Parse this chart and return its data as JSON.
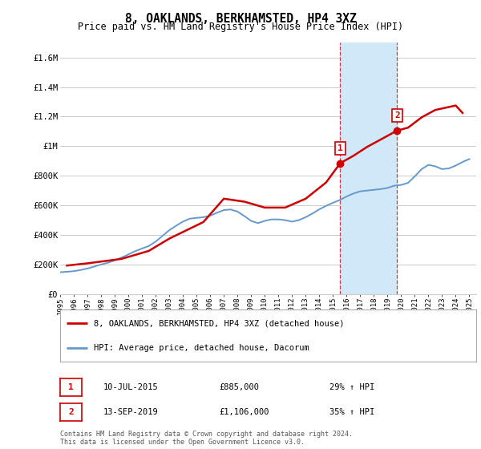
{
  "title": "8, OAKLANDS, BERKHAMSTED, HP4 3XZ",
  "subtitle": "Price paid vs. HM Land Registry's House Price Index (HPI)",
  "ylim": [
    0,
    1700000
  ],
  "xlim_start": 1995.0,
  "xlim_end": 2025.5,
  "yticks": [
    0,
    200000,
    400000,
    600000,
    800000,
    1000000,
    1200000,
    1400000,
    1600000
  ],
  "ytick_labels": [
    "£0",
    "£200K",
    "£400K",
    "£600K",
    "£800K",
    "£1M",
    "£1.2M",
    "£1.4M",
    "£1.6M"
  ],
  "sale1_x": 2015.53,
  "sale1_y": 885000,
  "sale2_x": 2019.71,
  "sale2_y": 1106000,
  "shade_x1": 2015.53,
  "shade_x2": 2019.71,
  "red_color": "#cc0000",
  "blue_color": "#6699cc",
  "shade_color": "#d0e8f8",
  "grid_color": "#cccccc",
  "bg_color": "#ffffff",
  "legend_label_red": "8, OAKLANDS, BERKHAMSTED, HP4 3XZ (detached house)",
  "legend_label_blue": "HPI: Average price, detached house, Dacorum",
  "footnote1": "Contains HM Land Registry data © Crown copyright and database right 2024.",
  "footnote2": "This data is licensed under the Open Government Licence v3.0.",
  "table_row1": [
    "1",
    "10-JUL-2015",
    "£885,000",
    "29% ↑ HPI"
  ],
  "table_row2": [
    "2",
    "13-SEP-2019",
    "£1,106,000",
    "35% ↑ HPI"
  ],
  "hpi_years": [
    1995.0,
    1995.5,
    1996.0,
    1996.5,
    1997.0,
    1997.5,
    1998.0,
    1998.5,
    1999.0,
    1999.5,
    2000.0,
    2000.5,
    2001.0,
    2001.5,
    2002.0,
    2002.5,
    2003.0,
    2003.5,
    2004.0,
    2004.5,
    2005.0,
    2005.5,
    2006.0,
    2006.5,
    2007.0,
    2007.5,
    2008.0,
    2008.5,
    2009.0,
    2009.5,
    2010.0,
    2010.5,
    2011.0,
    2011.5,
    2012.0,
    2012.5,
    2013.0,
    2013.5,
    2014.0,
    2014.5,
    2015.0,
    2015.5,
    2016.0,
    2016.5,
    2017.0,
    2017.5,
    2018.0,
    2018.5,
    2019.0,
    2019.5,
    2020.0,
    2020.5,
    2021.0,
    2021.5,
    2022.0,
    2022.5,
    2023.0,
    2023.5,
    2024.0,
    2024.5,
    2025.0
  ],
  "hpi_values": [
    148000,
    151000,
    155000,
    163000,
    173000,
    186000,
    200000,
    212000,
    228000,
    247000,
    268000,
    290000,
    308000,
    325000,
    355000,
    393000,
    432000,
    462000,
    490000,
    510000,
    515000,
    520000,
    530000,
    550000,
    568000,
    572000,
    558000,
    528000,
    495000,
    480000,
    495000,
    505000,
    505000,
    500000,
    490000,
    500000,
    520000,
    545000,
    573000,
    597000,
    617000,
    636000,
    660000,
    680000,
    695000,
    700000,
    705000,
    710000,
    718000,
    733000,
    738000,
    752000,
    796000,
    845000,
    874000,
    864000,
    845000,
    850000,
    869000,
    893000,
    913000
  ],
  "price_years": [
    1995.5,
    1997.0,
    1999.5,
    2001.5,
    2003.0,
    2005.5,
    2007.0,
    2008.5,
    2010.0,
    2011.5,
    2013.0,
    2014.5,
    2015.53,
    2016.5,
    2017.5,
    2018.5,
    2019.71,
    2020.5,
    2021.5,
    2022.5,
    2023.5,
    2024.0,
    2024.5
  ],
  "price_values": [
    193000,
    208000,
    238000,
    292000,
    375000,
    487000,
    645000,
    625000,
    585000,
    585000,
    645000,
    755000,
    885000,
    935000,
    995000,
    1045000,
    1106000,
    1125000,
    1195000,
    1245000,
    1265000,
    1275000,
    1225000
  ]
}
